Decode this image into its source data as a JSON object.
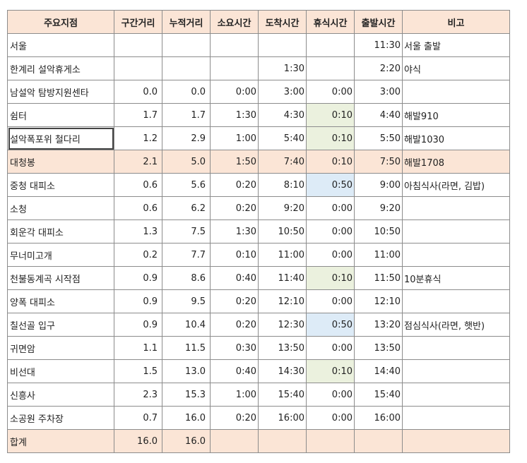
{
  "headers": [
    "주요지점",
    "구간거리",
    "누적거리",
    "소요시간",
    "도착시간",
    "휴식시간",
    "출발시간",
    "비고"
  ],
  "rows": [
    [
      "서울",
      "",
      "",
      "",
      "",
      "",
      "11:30",
      "서울 출발"
    ],
    [
      "한계리 설악휴게소",
      "",
      "",
      "",
      "1:30",
      "",
      "2:20",
      "야식"
    ],
    [
      "남설악 탐방지원센타",
      "0.0",
      "0.0",
      "0:00",
      "3:00",
      "0:00",
      "3:00",
      ""
    ],
    [
      "쉼터",
      "1.7",
      "1.7",
      "1:30",
      "4:30",
      "0:10",
      "4:40",
      "해발910"
    ],
    [
      "설악폭포위 철다리",
      "1.2",
      "2.9",
      "1:00",
      "5:40",
      "0:10",
      "5:50",
      "해발1030"
    ],
    [
      "대청봉",
      "2.1",
      "5.0",
      "1:50",
      "7:40",
      "0:10",
      "7:50",
      "해발1708"
    ],
    [
      "중청 대피소",
      "0.6",
      "5.6",
      "0:20",
      "8:10",
      "0:50",
      "9:00",
      "아침식사(라면, 김밥)"
    ],
    [
      "소청",
      "0.6",
      "6.2",
      "0:20",
      "9:20",
      "0:00",
      "9:20",
      ""
    ],
    [
      "회운각 대피소",
      "1.3",
      "7.5",
      "1:30",
      "10:50",
      "0:00",
      "10:50",
      ""
    ],
    [
      "무너미고개",
      "0.2",
      "7.7",
      "0:10",
      "11:00",
      "0:00",
      "11:00",
      ""
    ],
    [
      "천불동계곡 시작점",
      "0.9",
      "8.6",
      "0:40",
      "11:40",
      "0:10",
      "11:50",
      "10분휴식"
    ],
    [
      "양폭 대피소",
      "0.9",
      "9.5",
      "0:20",
      "12:10",
      "0:00",
      "12:10",
      ""
    ],
    [
      "칠선골 입구",
      "0.9",
      "10.4",
      "0:20",
      "12:30",
      "0:50",
      "13:20",
      "점심식사(라면, 햇반)"
    ],
    [
      "귀면암",
      "1.1",
      "11.5",
      "0:30",
      "13:50",
      "0:00",
      "13:50",
      ""
    ],
    [
      "비선대",
      "1.5",
      "13.0",
      "0:40",
      "14:30",
      "0:10",
      "14:40",
      ""
    ],
    [
      "신흥사",
      "2.3",
      "15.3",
      "1:00",
      "15:40",
      "0:00",
      "15:40",
      ""
    ],
    [
      "소공원 주차장",
      "0.7",
      "16.0",
      "0:20",
      "16:00",
      "0:00",
      "16:00",
      ""
    ],
    [
      "합계",
      "16.0",
      "16.0",
      "",
      "",
      "",
      "",
      ""
    ]
  ],
  "row_styles": [
    "",
    "",
    "",
    "",
    "",
    "hl",
    "",
    "",
    "",
    "",
    "",
    "",
    "",
    "",
    "",
    "",
    "",
    "hl"
  ],
  "rest_styles": [
    "",
    "",
    "",
    "rest-green",
    "rest-green",
    "rest-green",
    "rest-blue",
    "",
    "",
    "",
    "rest-green",
    "",
    "rest-blue",
    "",
    "rest-green",
    "",
    "",
    ""
  ],
  "selected_cell": {
    "row": 4,
    "col": 0
  },
  "colors": {
    "header_fill": "#fbe5d6",
    "highlight_row": "#fbe5d6",
    "rest_green": "#ebf1de",
    "rest_blue": "#ddebf7",
    "grid": "#8c8c8c"
  }
}
